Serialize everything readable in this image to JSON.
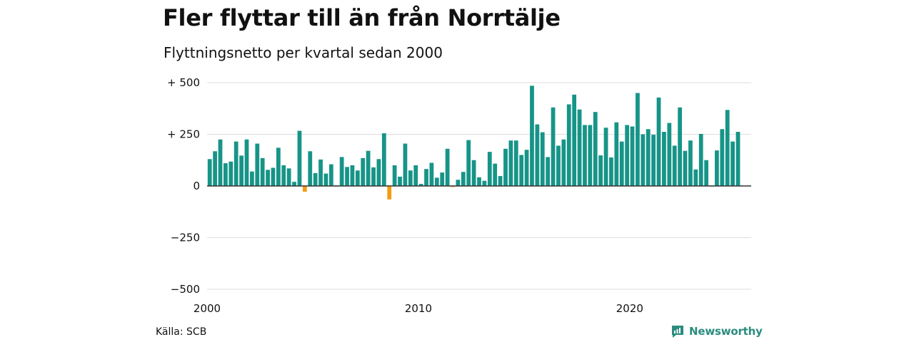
{
  "title": "Fler flyttar till än från Norrtälje",
  "subtitle": "Flyttningsnetto per kvartal sedan 2000",
  "source": "Källa: SCB",
  "brand": {
    "name": "Newsworthy",
    "icon": "newsworthy-logo-icon",
    "color": "#2a8c7e"
  },
  "colors": {
    "positive": "#179488",
    "negative": "#f39c12",
    "grid": "#dddddd",
    "axis": "#333333"
  },
  "chart_data": {
    "type": "bar",
    "x_tick_labels": [
      "2000",
      "2010",
      "2020"
    ],
    "y_tick_labels": [
      "+ 500",
      "+ 250",
      "0",
      "−250",
      "−500"
    ],
    "y_ticks": [
      500,
      250,
      0,
      -250,
      -500
    ],
    "x_ticks": [
      2000,
      2010,
      2020
    ],
    "ylim": [
      -500,
      500
    ],
    "xlim": [
      2000,
      2025.75
    ],
    "grid": true,
    "series": [
      {
        "x_start": 2000,
        "period": "quarter",
        "values": [
          130,
          168,
          225,
          110,
          118,
          215,
          147,
          225,
          70,
          205,
          135,
          78,
          88,
          185,
          100,
          85,
          20,
          267,
          -28,
          168,
          62,
          128,
          60,
          105,
          0,
          140,
          92,
          100,
          75,
          135,
          170,
          90,
          130,
          255,
          -65,
          100,
          45,
          205,
          75,
          100,
          10,
          82,
          112,
          40,
          65,
          180,
          -5,
          30,
          68,
          222,
          125,
          42,
          25,
          165,
          108,
          48,
          180,
          220,
          220,
          150,
          175,
          485,
          298,
          260,
          140,
          380,
          195,
          225,
          395,
          442,
          370,
          295,
          295,
          358,
          148,
          282,
          138,
          308,
          215,
          295,
          288,
          450,
          250,
          275,
          248,
          428,
          262,
          305,
          195,
          380,
          170,
          220,
          80,
          252,
          125,
          0,
          172,
          275,
          368,
          215,
          262
        ]
      }
    ]
  }
}
